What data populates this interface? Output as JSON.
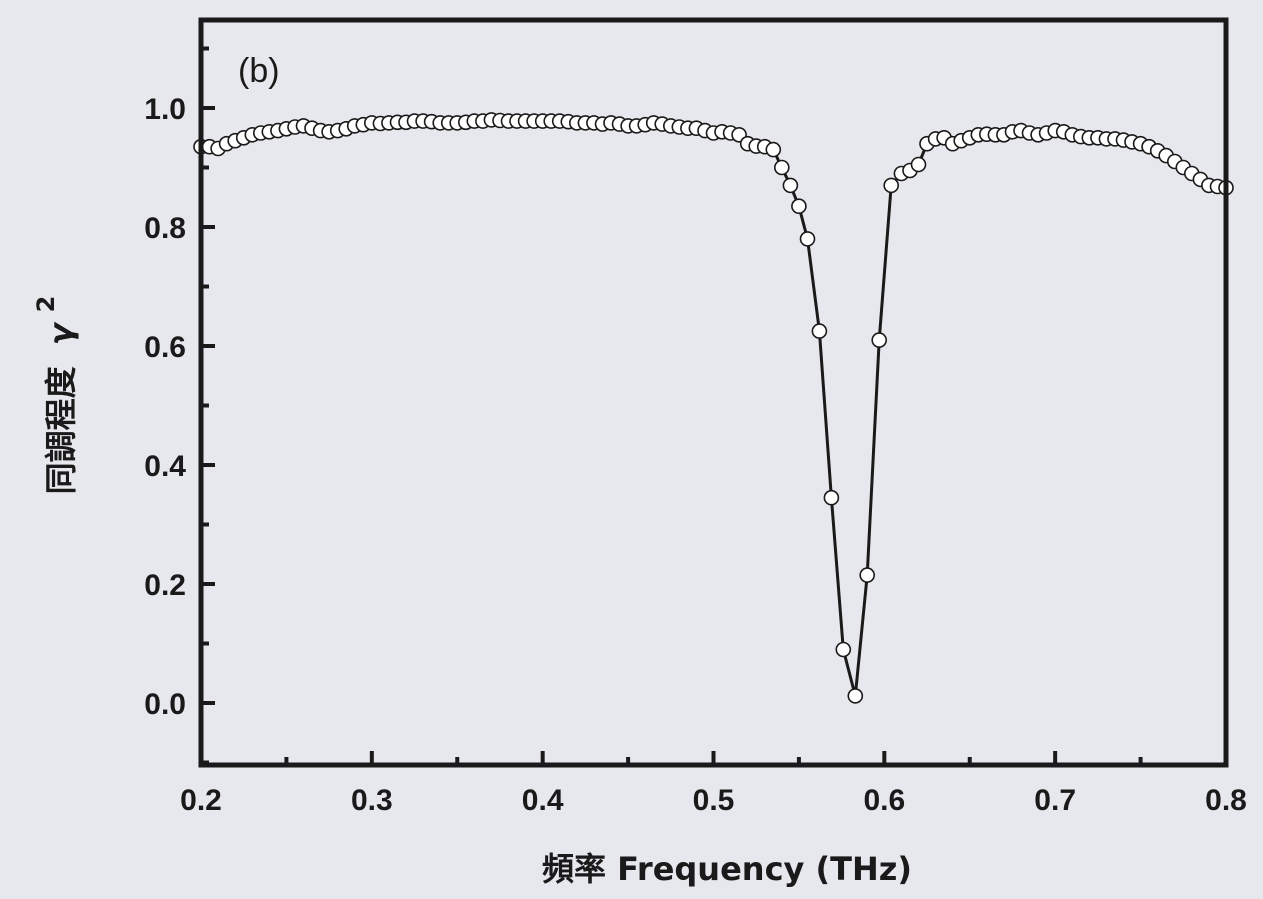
{
  "chart_data": {
    "type": "line",
    "panel_label": "(b)",
    "xlabel": "頻率 Frequency (THz)",
    "ylabel": "同調程度",
    "ylabel_symbol": "γ",
    "ylabel_superscript": "2",
    "xlim": [
      0.2,
      0.8
    ],
    "ylim": [
      -0.1,
      1.15
    ],
    "x_ticks": [
      "0.2",
      "0.3",
      "0.4",
      "0.5",
      "0.6",
      "0.7",
      "0.8"
    ],
    "y_ticks": [
      "0.0",
      "0.2",
      "0.4",
      "0.6",
      "0.8",
      "1.0"
    ],
    "x_tick_values": [
      0.2,
      0.3,
      0.4,
      0.5,
      0.6,
      0.7,
      0.8
    ],
    "y_tick_values": [
      0.0,
      0.2,
      0.4,
      0.6,
      0.8,
      1.0
    ],
    "grid": false,
    "legend": "none",
    "marker": "open-circle",
    "colors": {
      "background": "#e6e8ee",
      "line": "#1a1a1a",
      "marker_fill": "#ffffff",
      "marker_stroke": "#1a1a1a"
    },
    "series": [
      {
        "x": [
          0.2,
          0.205,
          0.21,
          0.215,
          0.22,
          0.225,
          0.23,
          0.235,
          0.24,
          0.245,
          0.25,
          0.255,
          0.26,
          0.265,
          0.27,
          0.275,
          0.28,
          0.285,
          0.29,
          0.295,
          0.3,
          0.305,
          0.31,
          0.315,
          0.32,
          0.325,
          0.33,
          0.335,
          0.34,
          0.345,
          0.35,
          0.355,
          0.36,
          0.365,
          0.37,
          0.375,
          0.38,
          0.385,
          0.39,
          0.395,
          0.4,
          0.405,
          0.41,
          0.415,
          0.42,
          0.425,
          0.43,
          0.435,
          0.44,
          0.445,
          0.45,
          0.455,
          0.46,
          0.465,
          0.47,
          0.475,
          0.48,
          0.485,
          0.49,
          0.495,
          0.5,
          0.505,
          0.51,
          0.515,
          0.52,
          0.525,
          0.53,
          0.535,
          0.54,
          0.545,
          0.55,
          0.555,
          0.562,
          0.569,
          0.576,
          0.583,
          0.59,
          0.597,
          0.604,
          0.61,
          0.615,
          0.62,
          0.625,
          0.63,
          0.635,
          0.64,
          0.645,
          0.65,
          0.655,
          0.66,
          0.665,
          0.67,
          0.675,
          0.68,
          0.685,
          0.69,
          0.695,
          0.7,
          0.705,
          0.71,
          0.715,
          0.72,
          0.725,
          0.73,
          0.735,
          0.74,
          0.745,
          0.75,
          0.755,
          0.76,
          0.765,
          0.77,
          0.775,
          0.78,
          0.785,
          0.79,
          0.795,
          0.8
        ],
        "y": [
          0.935,
          0.935,
          0.932,
          0.94,
          0.945,
          0.95,
          0.955,
          0.958,
          0.96,
          0.962,
          0.965,
          0.968,
          0.97,
          0.966,
          0.962,
          0.96,
          0.962,
          0.965,
          0.97,
          0.972,
          0.975,
          0.974,
          0.975,
          0.976,
          0.976,
          0.978,
          0.978,
          0.977,
          0.975,
          0.975,
          0.975,
          0.976,
          0.978,
          0.978,
          0.98,
          0.979,
          0.978,
          0.978,
          0.978,
          0.978,
          0.978,
          0.978,
          0.978,
          0.977,
          0.975,
          0.975,
          0.975,
          0.973,
          0.975,
          0.973,
          0.97,
          0.97,
          0.972,
          0.975,
          0.973,
          0.97,
          0.968,
          0.966,
          0.966,
          0.962,
          0.958,
          0.96,
          0.958,
          0.955,
          0.94,
          0.936,
          0.935,
          0.93,
          0.9,
          0.87,
          0.835,
          0.78,
          0.625,
          0.345,
          0.09,
          0.012,
          0.215,
          0.61,
          0.87,
          0.89,
          0.895,
          0.905,
          0.94,
          0.948,
          0.95,
          0.94,
          0.945,
          0.95,
          0.955,
          0.956,
          0.955,
          0.955,
          0.96,
          0.962,
          0.958,
          0.955,
          0.958,
          0.962,
          0.96,
          0.955,
          0.952,
          0.95,
          0.95,
          0.948,
          0.948,
          0.946,
          0.943,
          0.94,
          0.935,
          0.928,
          0.92,
          0.91,
          0.9,
          0.89,
          0.88,
          0.87,
          0.868,
          0.866
        ]
      }
    ]
  }
}
